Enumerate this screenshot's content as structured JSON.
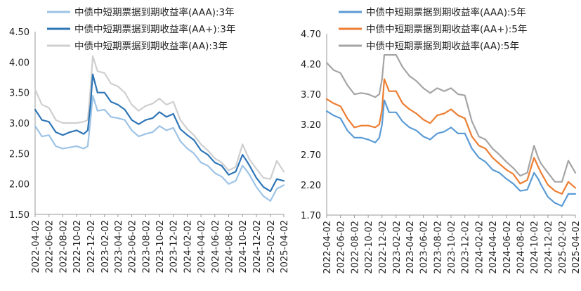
{
  "chart_data": [
    {
      "type": "line",
      "title": "",
      "xlabel": "",
      "ylabel": "",
      "ylim": [
        1.5,
        4.5
      ],
      "yticks": [
        "4.50",
        "4.00",
        "3.50",
        "3.00",
        "2.50",
        "2.00",
        "1.50"
      ],
      "yticks_values": [
        4.5,
        4.0,
        3.5,
        3.0,
        2.5,
        2.0,
        1.5
      ],
      "xticks": [
        "2022-04-02",
        "2022-06-02",
        "2022-08-02",
        "2022-10-02",
        "2022-12-02",
        "2023-02-02",
        "2023-04-02",
        "2023-06-02",
        "2023-08-02",
        "2023-10-02",
        "2023-12-02",
        "2024-02-02",
        "2024-04-02",
        "2024-06-02",
        "2024-08-02",
        "2024-10-02",
        "2024-12-02",
        "2025-02-02",
        "2025-04-02"
      ],
      "grid": false,
      "legend_position": "top",
      "x": [
        "2022-04-02",
        "2022-05-02",
        "2022-06-02",
        "2022-07-02",
        "2022-08-02",
        "2022-09-02",
        "2022-10-02",
        "2022-11-02",
        "2022-11-20",
        "2022-12-02",
        "2022-12-12",
        "2023-01-02",
        "2023-02-02",
        "2023-03-02",
        "2023-04-02",
        "2023-05-02",
        "2023-06-02",
        "2023-07-02",
        "2023-08-02",
        "2023-09-02",
        "2023-10-02",
        "2023-11-02",
        "2023-12-02",
        "2024-01-02",
        "2024-02-02",
        "2024-03-02",
        "2024-04-02",
        "2024-05-02",
        "2024-06-02",
        "2024-07-02",
        "2024-08-02",
        "2024-09-02",
        "2024-10-02",
        "2024-10-20",
        "2024-11-02",
        "2024-12-02",
        "2025-01-02",
        "2025-02-02",
        "2025-03-02",
        "2025-04-02"
      ],
      "series": [
        {
          "name": "中债中短期票据到期收益率(AAA):3年",
          "color": "#9dc3e6",
          "values": [
            2.95,
            2.78,
            2.8,
            2.62,
            2.58,
            2.6,
            2.62,
            2.58,
            2.62,
            3.05,
            3.45,
            3.2,
            3.22,
            3.1,
            3.08,
            3.05,
            2.88,
            2.78,
            2.82,
            2.85,
            2.95,
            2.88,
            2.92,
            2.7,
            2.58,
            2.5,
            2.35,
            2.3,
            2.18,
            2.12,
            2.0,
            2.05,
            2.3,
            2.22,
            2.15,
            1.95,
            1.8,
            1.72,
            1.92,
            1.98
          ]
        },
        {
          "name": "中债中短期票据到期收益率(AA+):3年",
          "color": "#2e75b6",
          "values": [
            3.22,
            3.05,
            3.02,
            2.85,
            2.8,
            2.85,
            2.88,
            2.82,
            2.88,
            3.3,
            3.8,
            3.5,
            3.5,
            3.35,
            3.3,
            3.22,
            3.05,
            2.98,
            3.05,
            3.08,
            3.18,
            3.1,
            3.15,
            2.9,
            2.8,
            2.72,
            2.55,
            2.48,
            2.35,
            2.3,
            2.15,
            2.2,
            2.48,
            2.38,
            2.3,
            2.1,
            1.95,
            1.88,
            2.08,
            2.05
          ]
        },
        {
          "name": "中债中短期票据到期收益率(AA):3年",
          "color": "#cfcfcf",
          "values": [
            3.55,
            3.3,
            3.25,
            3.05,
            3.0,
            3.0,
            3.0,
            3.02,
            3.05,
            3.55,
            4.1,
            3.85,
            3.82,
            3.65,
            3.6,
            3.5,
            3.3,
            3.2,
            3.28,
            3.32,
            3.4,
            3.3,
            3.35,
            3.05,
            2.9,
            2.8,
            2.65,
            2.55,
            2.42,
            2.35,
            2.22,
            2.28,
            2.65,
            2.5,
            2.4,
            2.25,
            2.1,
            2.08,
            2.38,
            2.2
          ]
        }
      ]
    },
    {
      "type": "line",
      "title": "",
      "xlabel": "",
      "ylabel": "",
      "ylim": [
        1.7,
        4.7
      ],
      "yticks": [
        "4.70",
        "4.20",
        "3.70",
        "3.20",
        "2.70",
        "2.20",
        "1.70"
      ],
      "yticks_values": [
        4.7,
        4.2,
        3.7,
        3.2,
        2.7,
        2.2,
        1.7
      ],
      "xticks": [
        "2022-04-02",
        "2022-06-02",
        "2022-08-02",
        "2022-10-02",
        "2022-12-02",
        "2023-02-02",
        "2023-04-02",
        "2023-06-02",
        "2023-08-02",
        "2023-10-02",
        "2023-12-02",
        "2024-02-02",
        "2024-04-02",
        "2024-06-02",
        "2024-08-02",
        "2024-10-02",
        "2024-12-02",
        "2025-02-02",
        "2025-04-02"
      ],
      "grid": false,
      "legend_position": "top",
      "x": [
        "2022-04-02",
        "2022-05-02",
        "2022-06-02",
        "2022-07-02",
        "2022-08-02",
        "2022-09-02",
        "2022-10-02",
        "2022-11-02",
        "2022-11-20",
        "2022-12-02",
        "2022-12-12",
        "2023-01-02",
        "2023-02-02",
        "2023-03-02",
        "2023-04-02",
        "2023-05-02",
        "2023-06-02",
        "2023-07-02",
        "2023-08-02",
        "2023-09-02",
        "2023-10-02",
        "2023-11-02",
        "2023-12-02",
        "2024-01-02",
        "2024-02-02",
        "2024-03-02",
        "2024-04-02",
        "2024-05-02",
        "2024-06-02",
        "2024-07-02",
        "2024-08-02",
        "2024-09-02",
        "2024-10-02",
        "2024-10-20",
        "2024-11-02",
        "2024-12-02",
        "2025-01-02",
        "2025-02-02",
        "2025-03-02",
        "2025-04-02"
      ],
      "series": [
        {
          "name": "中债中短期票据到期收益率(AAA):5年",
          "color": "#5b9bd5",
          "values": [
            3.42,
            3.35,
            3.3,
            3.1,
            2.98,
            2.98,
            2.95,
            2.9,
            2.98,
            3.2,
            3.6,
            3.4,
            3.4,
            3.25,
            3.15,
            3.1,
            3.0,
            2.95,
            3.05,
            3.08,
            3.15,
            3.05,
            3.05,
            2.8,
            2.65,
            2.58,
            2.45,
            2.4,
            2.3,
            2.22,
            2.1,
            2.12,
            2.4,
            2.3,
            2.2,
            2.0,
            1.9,
            1.85,
            2.05,
            2.05
          ]
        },
        {
          "name": "中债中短期票据到期收益率(AA+):5年",
          "color": "#ed7d31",
          "values": [
            3.62,
            3.55,
            3.5,
            3.3,
            3.15,
            3.18,
            3.18,
            3.15,
            3.2,
            3.45,
            3.95,
            3.75,
            3.75,
            3.55,
            3.45,
            3.38,
            3.28,
            3.22,
            3.35,
            3.38,
            3.45,
            3.35,
            3.3,
            3.0,
            2.85,
            2.8,
            2.65,
            2.55,
            2.45,
            2.38,
            2.22,
            2.28,
            2.65,
            2.5,
            2.4,
            2.2,
            2.1,
            2.05,
            2.25,
            2.15
          ]
        },
        {
          "name": "中债中短期票据到期收益率(AA):5年",
          "color": "#a5a5a5",
          "values": [
            4.22,
            4.1,
            4.05,
            3.85,
            3.7,
            3.72,
            3.7,
            3.65,
            3.7,
            3.95,
            4.35,
            4.35,
            4.35,
            4.15,
            4.0,
            3.92,
            3.8,
            3.72,
            3.8,
            3.75,
            3.8,
            3.7,
            3.68,
            3.25,
            3.0,
            2.95,
            2.8,
            2.7,
            2.58,
            2.48,
            2.35,
            2.4,
            2.85,
            2.65,
            2.55,
            2.4,
            2.25,
            2.25,
            2.6,
            2.4
          ]
        }
      ]
    }
  ]
}
